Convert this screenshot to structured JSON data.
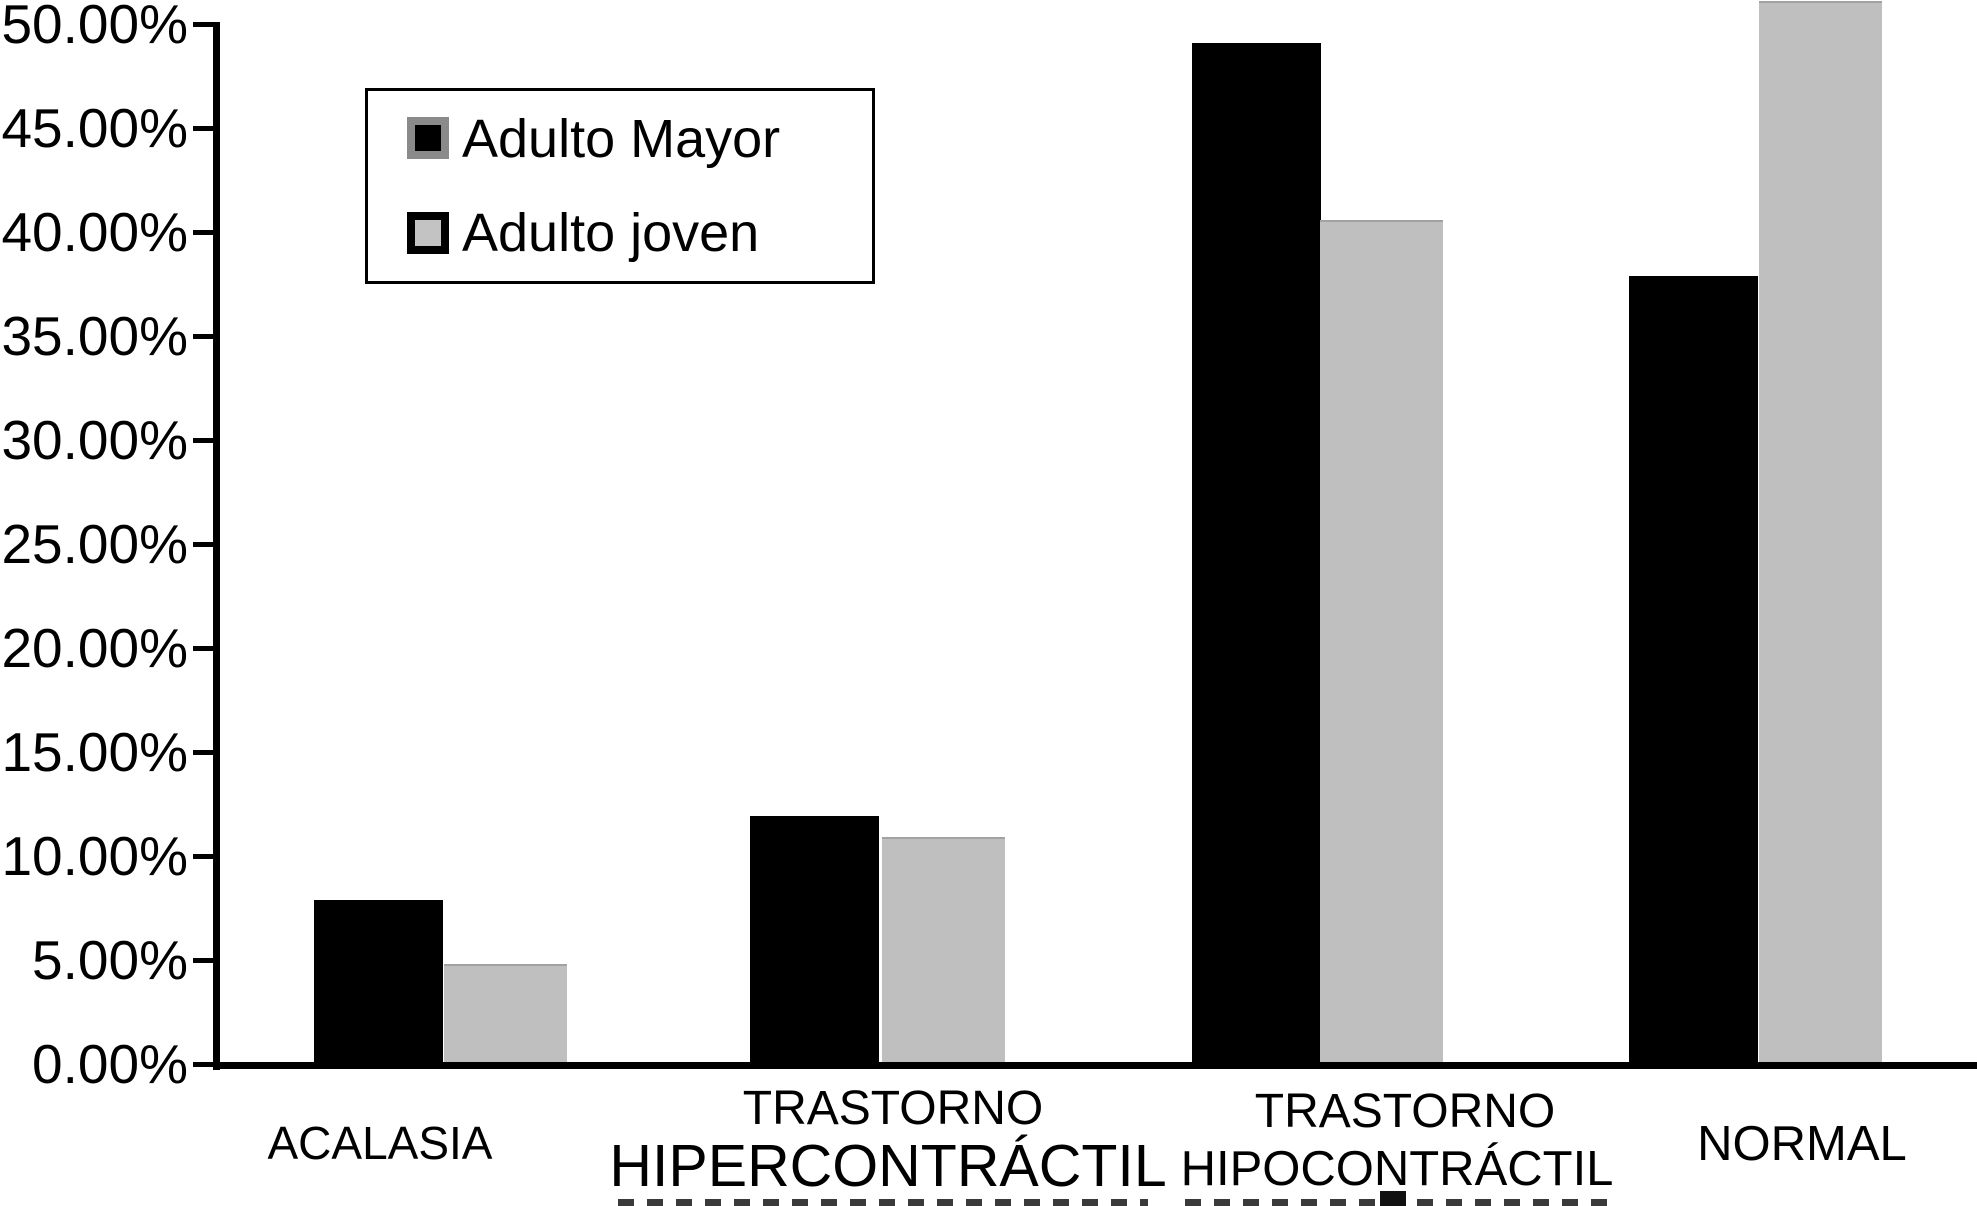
{
  "chart_data": {
    "type": "bar",
    "title": "",
    "categories": [
      "ACALASIA",
      "TRASTORNO HIPERCONTRÁCTIL",
      "TRASTORNO HIPOCONTRÁCTIL",
      "NORMAL"
    ],
    "category_label_lines": [
      [
        "ACALASIA"
      ],
      [
        "TRASTORNO",
        "HIPERCONTRÁCTIL"
      ],
      [
        "TRASTORNO",
        "HIPOCONTRÁCTIL"
      ],
      [
        "NORMAL"
      ]
    ],
    "series": [
      {
        "name": "Adulto Mayor",
        "color": "#000000",
        "values": [
          7.9,
          11.9,
          49.1,
          37.9
        ]
      },
      {
        "name": "Adulto joven",
        "color": "#bfbfbf",
        "values": [
          4.8,
          10.9,
          40.6,
          51.1
        ]
      }
    ],
    "xlabel": "",
    "ylabel": "",
    "ylim": [
      0,
      50
    ],
    "y_tick_step": 5,
    "y_tick_labels": [
      "50.00%",
      "45.00%",
      "40.00%",
      "35.00%",
      "30.00%",
      "25.00%",
      "20.00%",
      "15.00%",
      "10.00%",
      "5.00%",
      "0.00%"
    ],
    "grid": false,
    "legend_position": "top-left"
  },
  "legend": {
    "items": [
      {
        "label": "Adulto Mayor",
        "fill": "#000000",
        "frame": "#8a8a8a"
      },
      {
        "label": "Adulto joven",
        "fill": "#c3c3c3",
        "frame": "#000000"
      }
    ]
  },
  "colors": {
    "background": "#ffffff",
    "axis": "#000000",
    "bar_adulto_mayor": "#000000",
    "bar_adulto_joven": "#bfbfbf"
  }
}
